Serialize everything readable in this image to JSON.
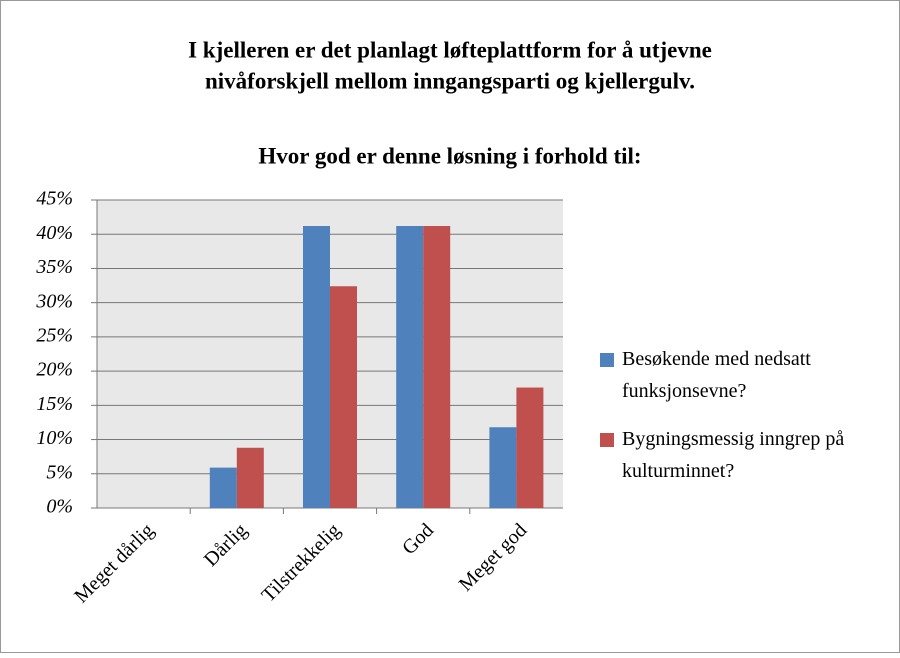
{
  "chart_data": {
    "type": "bar",
    "title": [
      "I kjelleren er det planlagt løfteplattform for å utjevne",
      "nivåforskjell mellom inngangsparti og kjellergulv."
    ],
    "subtitle": "Hvor god er denne løsning i forhold til:",
    "categories": [
      "Meget dårlig",
      "Dårlig",
      "Tilstrekkelig",
      "God",
      "Meget god"
    ],
    "series": [
      {
        "name": "Besøkende med nedsatt funksjonsevne?",
        "color": "#4f81bd",
        "values": [
          0,
          5.9,
          41.2,
          41.2,
          11.8
        ]
      },
      {
        "name": "Bygningsmessig inngrep på kulturminnet?",
        "color": "#c0504d",
        "values": [
          0,
          8.8,
          32.4,
          41.2,
          17.6
        ]
      }
    ],
    "ylim": [
      0,
      45
    ],
    "yticks": [
      {
        "value": 0,
        "label": "0%"
      },
      {
        "value": 5,
        "label": "5%"
      },
      {
        "value": 10,
        "label": "10%"
      },
      {
        "value": 15,
        "label": "15%"
      },
      {
        "value": 20,
        "label": "20%"
      },
      {
        "value": 25,
        "label": "25%"
      },
      {
        "value": 30,
        "label": "30%"
      },
      {
        "value": 35,
        "label": "35%"
      },
      {
        "value": 40,
        "label": "40%"
      },
      {
        "value": 45,
        "label": "45%"
      }
    ],
    "grid": true,
    "legend": "right"
  }
}
